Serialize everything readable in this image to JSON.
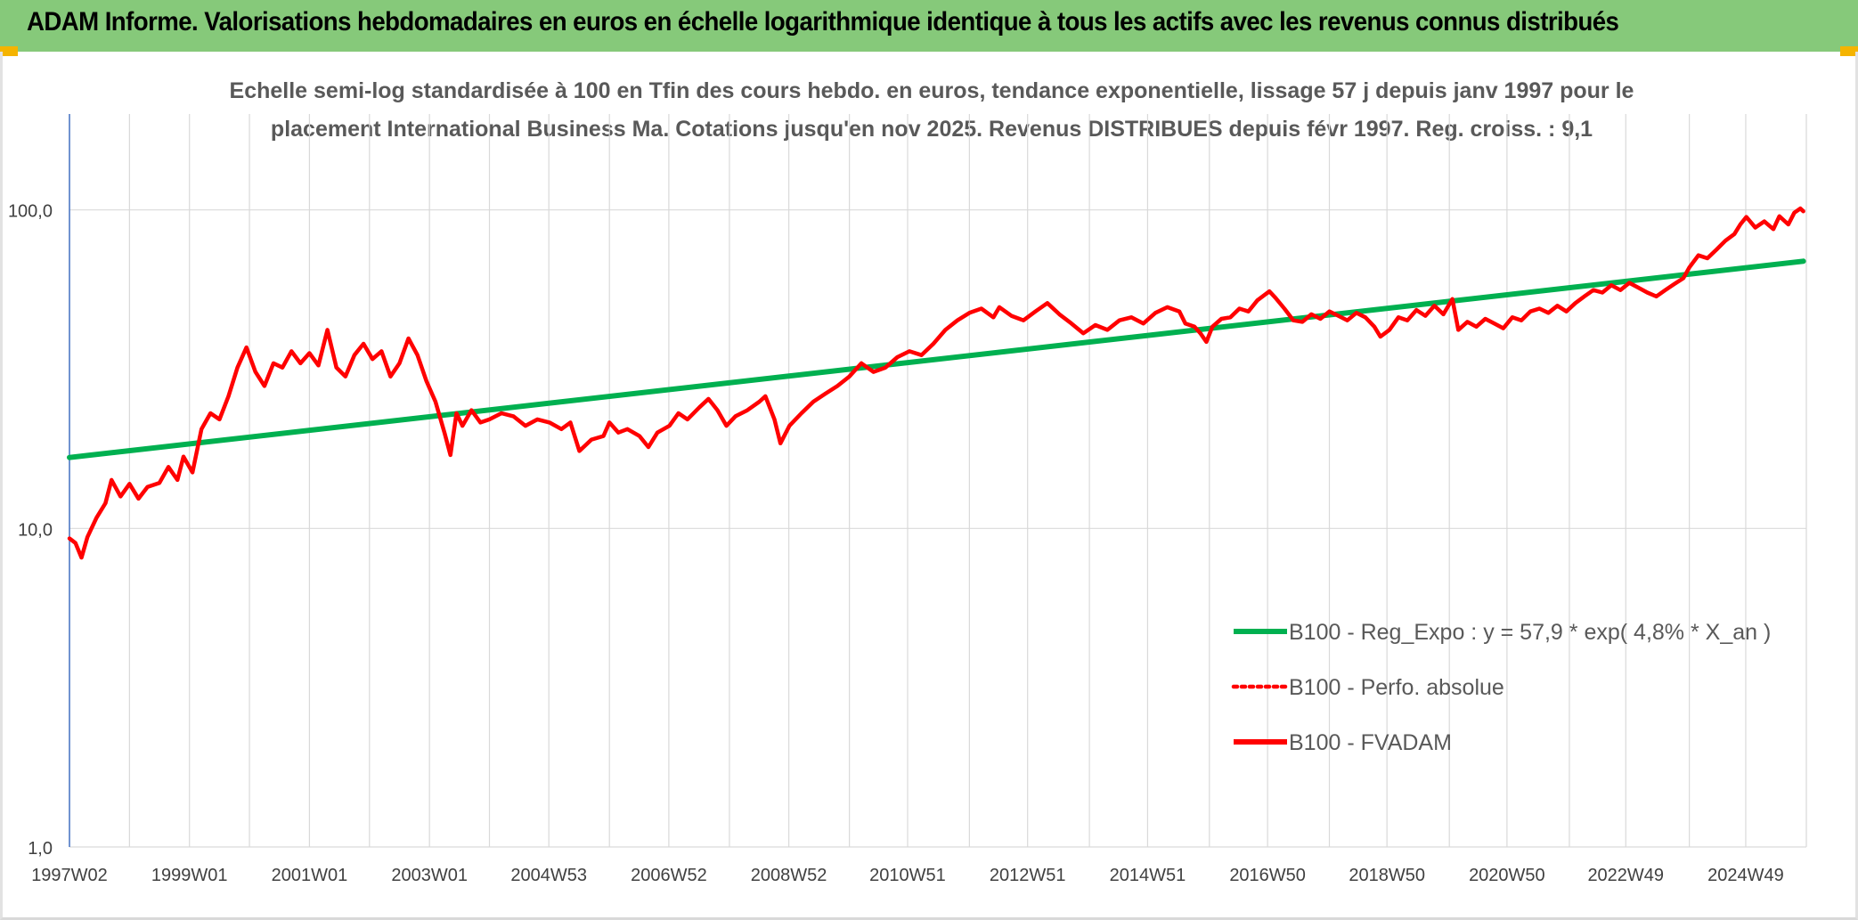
{
  "header": {
    "title": "ADAM Informe. Valorisations hebdomadaires en euros en échelle logarithmique identique à tous les actifs avec les revenus connus distribués"
  },
  "colors": {
    "header_bg": "#86c97a",
    "regression": "#00b050",
    "fvadam": "#ff0000",
    "perfo": "#ff0000",
    "grid": "#d9d9d9",
    "axis": "#4472c4"
  },
  "chart_data": {
    "type": "line",
    "title_lines": [
      "Echelle semi-log standardisée à 100 en Tfin des cours hebdo. en euros, tendance exponentielle, lissage 57 j depuis janv 1997 pour le",
      "placement International Business Ma. Cotations jusqu'en nov 2025. Revenus DISTRIBUES depuis févr 1997. Reg. croiss. : 9,1"
    ],
    "y_scale": "log",
    "ylim": [
      1,
      200
    ],
    "xlim": [
      1997.0,
      2025.95
    ],
    "y_ticks": [
      {
        "value": 1,
        "label": "1,0"
      },
      {
        "value": 10,
        "label": "10,0"
      },
      {
        "value": 100,
        "label": "100,0"
      }
    ],
    "x_ticks": [
      {
        "value": 1997.0,
        "label": "1997W02"
      },
      {
        "value": 1999.0,
        "label": "1999W01"
      },
      {
        "value": 2001.0,
        "label": "2001W01"
      },
      {
        "value": 2003.0,
        "label": "2003W01"
      },
      {
        "value": 2004.99,
        "label": "2004W53"
      },
      {
        "value": 2006.99,
        "label": "2006W52"
      },
      {
        "value": 2008.99,
        "label": "2008W52"
      },
      {
        "value": 2010.97,
        "label": "2010W51"
      },
      {
        "value": 2012.97,
        "label": "2012W51"
      },
      {
        "value": 2014.97,
        "label": "2014W51"
      },
      {
        "value": 2016.97,
        "label": "2016W50"
      },
      {
        "value": 2018.96,
        "label": "2018W50"
      },
      {
        "value": 2020.96,
        "label": "2020W50"
      },
      {
        "value": 2022.94,
        "label": "2022W49"
      },
      {
        "value": 2024.94,
        "label": "2024W49"
      }
    ],
    "minor_x_ticks": [
      1998.0,
      2000.0,
      2002.0,
      2004.0,
      2006.0,
      2008.0,
      2010.0,
      2012.0,
      2014.0,
      2016.0,
      2018.0,
      2020.0,
      2022.0,
      2024.0
    ],
    "series": [
      {
        "name": "B100 - Reg_Expo : y = 57,9 * exp( 4,8% *  X_an )",
        "style": "solid-green",
        "points": [
          [
            1997.0,
            16.7
          ],
          [
            2025.9,
            69.0
          ]
        ]
      },
      {
        "name": "B100 - Perfo. absolue",
        "style": "dotted-red",
        "points": []
      },
      {
        "name": "B100 - FVADAM",
        "style": "solid-red",
        "points": [
          [
            1997.0,
            9.3
          ],
          [
            1997.1,
            9.0
          ],
          [
            1997.2,
            8.1
          ],
          [
            1997.3,
            9.4
          ],
          [
            1997.45,
            10.8
          ],
          [
            1997.6,
            12.0
          ],
          [
            1997.7,
            14.2
          ],
          [
            1997.85,
            12.6
          ],
          [
            1998.0,
            13.8
          ],
          [
            1998.15,
            12.4
          ],
          [
            1998.3,
            13.5
          ],
          [
            1998.5,
            13.9
          ],
          [
            1998.65,
            15.6
          ],
          [
            1998.8,
            14.2
          ],
          [
            1998.9,
            16.8
          ],
          [
            1999.05,
            15.0
          ],
          [
            1999.2,
            20.5
          ],
          [
            1999.35,
            23.0
          ],
          [
            1999.5,
            22.0
          ],
          [
            1999.65,
            26.0
          ],
          [
            1999.8,
            32.0
          ],
          [
            1999.95,
            37.0
          ],
          [
            2000.1,
            31.0
          ],
          [
            2000.25,
            28.0
          ],
          [
            2000.4,
            33.0
          ],
          [
            2000.55,
            32.0
          ],
          [
            2000.7,
            36.0
          ],
          [
            2000.85,
            33.0
          ],
          [
            2001.0,
            35.5
          ],
          [
            2001.15,
            32.5
          ],
          [
            2001.3,
            42.0
          ],
          [
            2001.45,
            32.0
          ],
          [
            2001.6,
            30.0
          ],
          [
            2001.75,
            35.0
          ],
          [
            2001.9,
            38.0
          ],
          [
            2002.05,
            34.0
          ],
          [
            2002.2,
            36.0
          ],
          [
            2002.35,
            30.0
          ],
          [
            2002.5,
            33.0
          ],
          [
            2002.65,
            39.5
          ],
          [
            2002.8,
            35.0
          ],
          [
            2002.95,
            29.0
          ],
          [
            2003.1,
            25.0
          ],
          [
            2003.25,
            20.0
          ],
          [
            2003.35,
            17.0
          ],
          [
            2003.45,
            23.0
          ],
          [
            2003.55,
            21.0
          ],
          [
            2003.7,
            23.5
          ],
          [
            2003.85,
            21.5
          ],
          [
            2004.0,
            22.0
          ],
          [
            2004.2,
            23.0
          ],
          [
            2004.4,
            22.5
          ],
          [
            2004.6,
            21.0
          ],
          [
            2004.8,
            22.0
          ],
          [
            2005.0,
            21.5
          ],
          [
            2005.2,
            20.5
          ],
          [
            2005.35,
            21.5
          ],
          [
            2005.5,
            17.5
          ],
          [
            2005.7,
            19.0
          ],
          [
            2005.9,
            19.5
          ],
          [
            2006.0,
            21.5
          ],
          [
            2006.15,
            20.0
          ],
          [
            2006.3,
            20.5
          ],
          [
            2006.5,
            19.5
          ],
          [
            2006.65,
            18.0
          ],
          [
            2006.8,
            20.0
          ],
          [
            2007.0,
            21.0
          ],
          [
            2007.15,
            23.0
          ],
          [
            2007.3,
            22.0
          ],
          [
            2007.5,
            24.0
          ],
          [
            2007.65,
            25.5
          ],
          [
            2007.8,
            23.5
          ],
          [
            2007.95,
            21.0
          ],
          [
            2008.1,
            22.5
          ],
          [
            2008.3,
            23.5
          ],
          [
            2008.5,
            25.0
          ],
          [
            2008.6,
            26.0
          ],
          [
            2008.75,
            22.0
          ],
          [
            2008.85,
            18.5
          ],
          [
            2009.0,
            21.0
          ],
          [
            2009.2,
            23.0
          ],
          [
            2009.4,
            25.0
          ],
          [
            2009.6,
            26.5
          ],
          [
            2009.8,
            28.0
          ],
          [
            2010.0,
            30.0
          ],
          [
            2010.2,
            33.0
          ],
          [
            2010.4,
            31.0
          ],
          [
            2010.6,
            32.0
          ],
          [
            2010.8,
            34.5
          ],
          [
            2011.0,
            36.0
          ],
          [
            2011.2,
            35.0
          ],
          [
            2011.4,
            38.0
          ],
          [
            2011.6,
            42.0
          ],
          [
            2011.8,
            45.0
          ],
          [
            2012.0,
            47.5
          ],
          [
            2012.2,
            49.0
          ],
          [
            2012.4,
            46.0
          ],
          [
            2012.5,
            49.5
          ],
          [
            2012.7,
            46.5
          ],
          [
            2012.9,
            45.0
          ],
          [
            2013.1,
            48.0
          ],
          [
            2013.3,
            51.0
          ],
          [
            2013.5,
            47.0
          ],
          [
            2013.7,
            44.0
          ],
          [
            2013.9,
            41.0
          ],
          [
            2014.1,
            43.5
          ],
          [
            2014.3,
            42.0
          ],
          [
            2014.5,
            45.0
          ],
          [
            2014.7,
            46.0
          ],
          [
            2014.9,
            44.0
          ],
          [
            2015.1,
            47.5
          ],
          [
            2015.3,
            49.5
          ],
          [
            2015.5,
            48.0
          ],
          [
            2015.6,
            44.0
          ],
          [
            2015.75,
            43.0
          ],
          [
            2015.85,
            41.0
          ],
          [
            2015.95,
            38.5
          ],
          [
            2016.05,
            43.0
          ],
          [
            2016.2,
            45.5
          ],
          [
            2016.35,
            46.0
          ],
          [
            2016.5,
            49.0
          ],
          [
            2016.65,
            48.0
          ],
          [
            2016.8,
            52.0
          ],
          [
            2017.0,
            55.5
          ],
          [
            2017.1,
            53.0
          ],
          [
            2017.25,
            49.0
          ],
          [
            2017.4,
            45.0
          ],
          [
            2017.55,
            44.5
          ],
          [
            2017.7,
            47.0
          ],
          [
            2017.85,
            45.5
          ],
          [
            2018.0,
            48.0
          ],
          [
            2018.15,
            46.5
          ],
          [
            2018.3,
            45.0
          ],
          [
            2018.45,
            47.5
          ],
          [
            2018.6,
            46.0
          ],
          [
            2018.75,
            43.0
          ],
          [
            2018.85,
            40.0
          ],
          [
            2019.0,
            42.0
          ],
          [
            2019.15,
            46.0
          ],
          [
            2019.3,
            45.0
          ],
          [
            2019.45,
            48.5
          ],
          [
            2019.6,
            46.5
          ],
          [
            2019.75,
            50.0
          ],
          [
            2019.9,
            47.0
          ],
          [
            2020.05,
            52.5
          ],
          [
            2020.15,
            42.0
          ],
          [
            2020.3,
            44.5
          ],
          [
            2020.45,
            43.0
          ],
          [
            2020.6,
            45.5
          ],
          [
            2020.75,
            44.0
          ],
          [
            2020.9,
            42.5
          ],
          [
            2021.05,
            46.0
          ],
          [
            2021.2,
            45.0
          ],
          [
            2021.35,
            48.0
          ],
          [
            2021.5,
            49.0
          ],
          [
            2021.65,
            47.5
          ],
          [
            2021.8,
            50.0
          ],
          [
            2021.95,
            48.0
          ],
          [
            2022.1,
            51.0
          ],
          [
            2022.25,
            53.5
          ],
          [
            2022.4,
            56.0
          ],
          [
            2022.55,
            55.0
          ],
          [
            2022.7,
            58.0
          ],
          [
            2022.85,
            56.0
          ],
          [
            2023.0,
            59.0
          ],
          [
            2023.15,
            57.0
          ],
          [
            2023.3,
            55.0
          ],
          [
            2023.45,
            53.5
          ],
          [
            2023.6,
            56.0
          ],
          [
            2023.75,
            58.5
          ],
          [
            2023.9,
            61.0
          ],
          [
            2024.0,
            66.0
          ],
          [
            2024.15,
            72.0
          ],
          [
            2024.3,
            70.5
          ],
          [
            2024.45,
            75.0
          ],
          [
            2024.6,
            80.0
          ],
          [
            2024.75,
            84.0
          ],
          [
            2024.85,
            90.0
          ],
          [
            2024.95,
            95.0
          ],
          [
            2025.1,
            88.0
          ],
          [
            2025.25,
            92.0
          ],
          [
            2025.4,
            87.0
          ],
          [
            2025.5,
            95.5
          ],
          [
            2025.65,
            90.0
          ],
          [
            2025.75,
            98.0
          ],
          [
            2025.85,
            101.0
          ],
          [
            2025.9,
            99.0
          ]
        ]
      }
    ],
    "legend_position": "bottom-right"
  }
}
